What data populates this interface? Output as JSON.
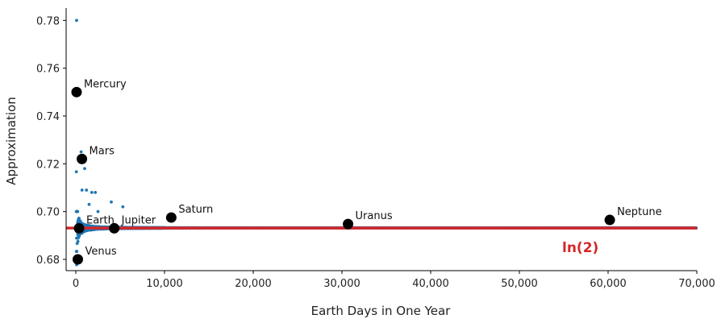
{
  "chart_data": {
    "type": "scatter",
    "xlabel": "Earth Days in One Year",
    "ylabel": "Approximation",
    "xlim": [
      -1000,
      70000
    ],
    "ylim": [
      0.675,
      0.785
    ],
    "x_ticks": [
      0,
      10000,
      20000,
      30000,
      40000,
      50000,
      60000,
      70000
    ],
    "x_tick_labels": [
      "0",
      "10,000",
      "20,000",
      "30,000",
      "40,000",
      "50,000",
      "60,000",
      "70,000"
    ],
    "y_ticks": [
      0.68,
      0.7,
      0.72,
      0.74,
      0.76,
      0.78
    ],
    "y_tick_labels": [
      "0.68",
      "0.70",
      "0.72",
      "0.74",
      "0.76",
      "0.78"
    ],
    "grid": false,
    "reference_line": {
      "label": "ln(2)",
      "value": 0.6931,
      "color": "#d62728"
    },
    "point_color": "#1f77b4",
    "series_points_note": "",
    "planets": [
      {
        "name": "Mercury",
        "x": 88,
        "y": 0.75
      },
      {
        "name": "Venus",
        "x": 225,
        "y": 0.68
      },
      {
        "name": "Earth",
        "x": 365,
        "y": 0.693
      },
      {
        "name": "Mars",
        "x": 687,
        "y": 0.722
      },
      {
        "name": "Jupiter",
        "x": 4333,
        "y": 0.693
      },
      {
        "name": "Saturn",
        "x": 10759,
        "y": 0.6975
      },
      {
        "name": "Uranus",
        "x": 30687,
        "y": 0.6948
      },
      {
        "name": "Neptune",
        "x": 60190,
        "y": 0.6965
      }
    ]
  }
}
